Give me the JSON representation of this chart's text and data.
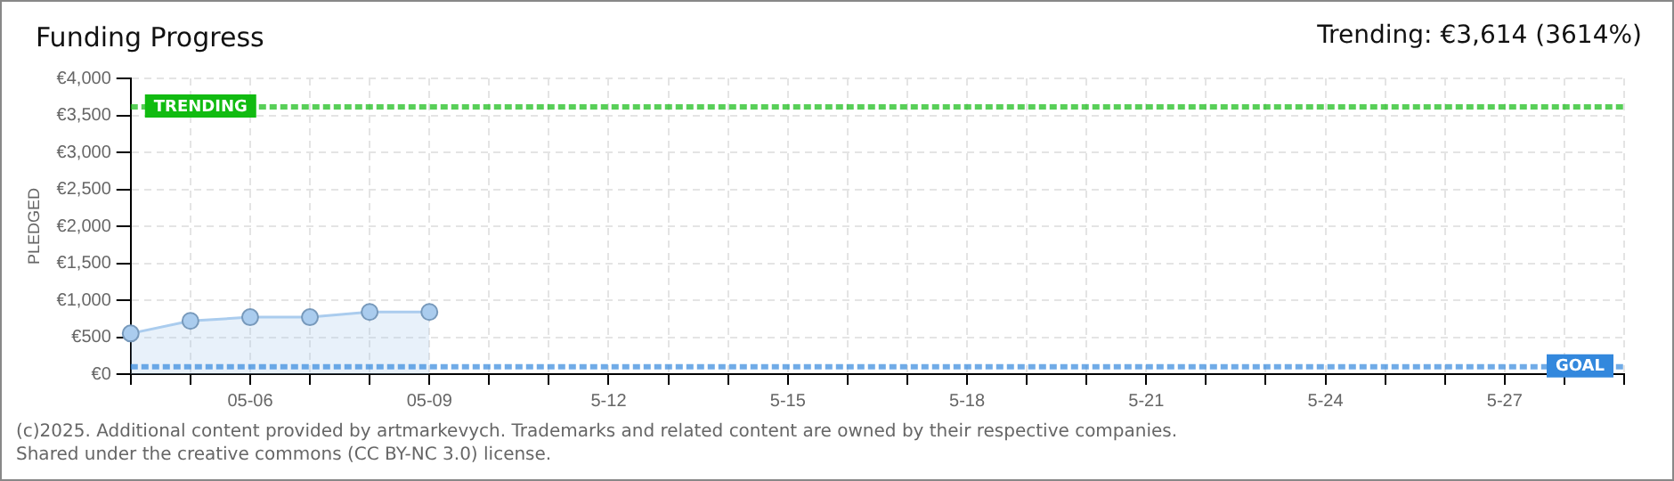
{
  "chart_data": {
    "type": "area",
    "title": "Funding Progress",
    "subtitle": "Trending: €3,614 (3614%)",
    "ylabel": "PLEDGED",
    "categories": [
      null,
      null,
      "05-06",
      null,
      null,
      "05-09",
      null,
      null,
      "5-12",
      null,
      null,
      "5-15",
      null,
      null,
      "5-18",
      null,
      null,
      "5-21",
      null,
      null,
      "5-24",
      null,
      null,
      "5-27",
      null,
      null
    ],
    "series": [
      {
        "color": "#aaccee",
        "values": [
          550,
          720,
          770,
          770,
          840,
          840,
          null,
          null,
          null,
          null,
          null,
          null,
          null,
          null,
          null,
          null,
          null,
          null,
          null,
          null,
          null,
          null,
          null,
          null,
          null,
          null
        ]
      }
    ],
    "ylim": [
      0,
      4000
    ],
    "yticks": [
      {
        "value": 0,
        "label": "€0"
      },
      {
        "value": 500,
        "label": "€500"
      },
      {
        "value": 1000,
        "label": "€1,000"
      },
      {
        "value": 1500,
        "label": "€1,500"
      },
      {
        "value": 2000,
        "label": "€2,000"
      },
      {
        "value": 2500,
        "label": "€2,500"
      },
      {
        "value": 3000,
        "label": "€3,000"
      },
      {
        "value": 3500,
        "label": "€3,500"
      },
      {
        "value": 4000,
        "label": "€4,000"
      }
    ],
    "ref_lines": [
      {
        "axis": "y",
        "value": 3614,
        "label": "TRENDING",
        "color": "#11bb11",
        "line_style": "dashed"
      },
      {
        "axis": "y",
        "value": 100,
        "label": "GOAL",
        "color": "#3388dd",
        "line_style": "dashed"
      }
    ],
    "grid": true,
    "marker": "circle",
    "legend": false,
    "annotations": [
      "(c)2025. Additional content provided by artmarkevych. Trademarks and related content are owned by their respective companies.",
      "Shared under the creative commons (CC BY-NC 3.0) license."
    ]
  }
}
